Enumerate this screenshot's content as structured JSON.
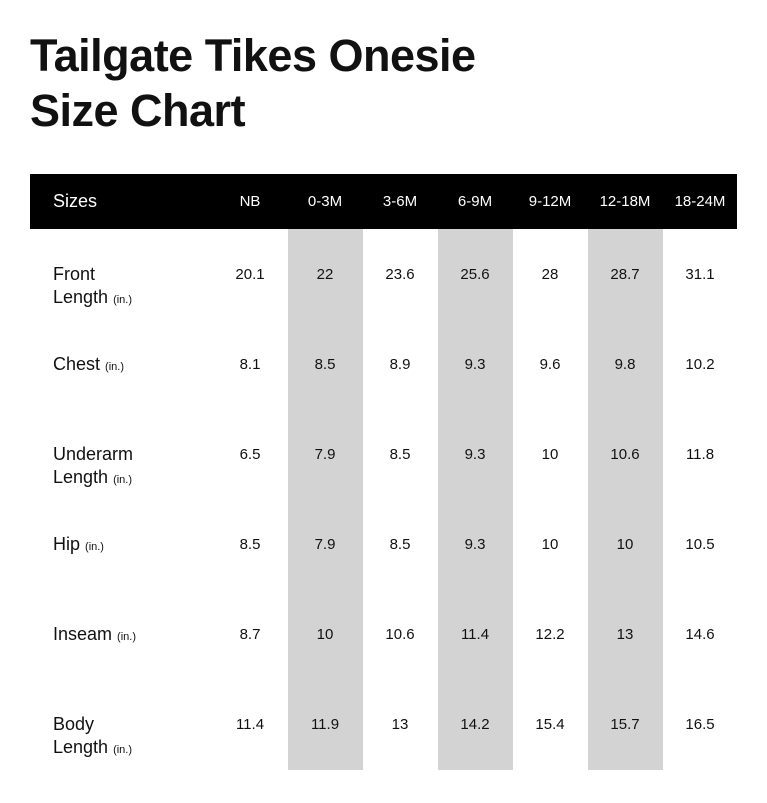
{
  "title": {
    "line1": "Tailgate Tikes Onesie",
    "line2": "Size Chart"
  },
  "table": {
    "header_label": "Sizes",
    "sizes": [
      "NB",
      "0-3M",
      "3-6M",
      "6-9M",
      "9-12M",
      "12-18M",
      "18-24M"
    ],
    "unit": "(in.)",
    "rows": [
      {
        "label_lines": [
          "Front",
          "Length"
        ],
        "values": [
          "20.1",
          "22",
          "23.6",
          "25.6",
          "28",
          "28.7",
          "31.1"
        ]
      },
      {
        "label_lines": [
          "Chest"
        ],
        "values": [
          "8.1",
          "8.5",
          "8.9",
          "9.3",
          "9.6",
          "9.8",
          "10.2"
        ]
      },
      {
        "label_lines": [
          "Underarm",
          "Length"
        ],
        "values": [
          "6.5",
          "7.9",
          "8.5",
          "9.3",
          "10",
          "10.6",
          "11.8"
        ]
      },
      {
        "label_lines": [
          "Hip"
        ],
        "values": [
          "8.5",
          "7.9",
          "8.5",
          "9.3",
          "10",
          "10",
          "10.5"
        ]
      },
      {
        "label_lines": [
          "Inseam"
        ],
        "values": [
          "8.7",
          "10",
          "10.6",
          "11.4",
          "12.2",
          "13",
          "14.6"
        ]
      },
      {
        "label_lines": [
          "Body",
          "Length"
        ],
        "values": [
          "11.4",
          "11.9",
          "13",
          "14.2",
          "15.4",
          "15.7",
          "16.5"
        ]
      }
    ]
  },
  "colors": {
    "header_bg": "#000000",
    "stripe": "#d3d3d3"
  }
}
